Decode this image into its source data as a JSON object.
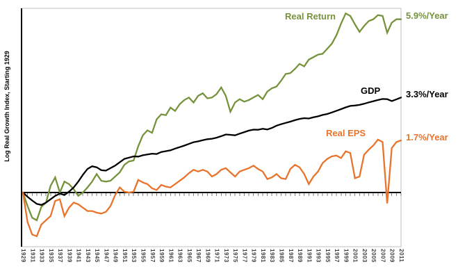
{
  "chart_data": {
    "type": "line",
    "title": "",
    "ylabel": "Log Real Growth Index, Starting 1929",
    "xlabel": "",
    "x_start": 1929,
    "x_end": 2011,
    "x_label_every_years": 2,
    "x_tick_labels": [
      "1929",
      "1931",
      "1933",
      "1935",
      "1937",
      "1939",
      "1941",
      "1943",
      "1945",
      "1947",
      "1949",
      "1951",
      "1953",
      "1955",
      "1957",
      "1959",
      "1961",
      "1963",
      "1965",
      "1967",
      "1969",
      "1971",
      "1973",
      "1975",
      "1977",
      "1979",
      "1981",
      "1983",
      "1985",
      "1987",
      "1989",
      "1991",
      "1993",
      "1995",
      "1997",
      "1999",
      "2001",
      "2003",
      "2005",
      "2007",
      "2009",
      "2011"
    ],
    "y_axis_numeric_labels_visible": false,
    "y_range_log10": [
      -0.65,
      2.25
    ],
    "zero_baseline": true,
    "grid": false,
    "legend_position": "inline-labels",
    "series": [
      {
        "name": "Real Return",
        "annotation": "5.9%/Year",
        "color": "#76923C",
        "values_log10_growth_index": [
          0.0,
          -0.16,
          -0.3,
          -0.33,
          -0.17,
          -0.12,
          0.08,
          0.18,
          0.0,
          0.13,
          0.1,
          0.04,
          -0.04,
          0.0,
          0.06,
          0.13,
          0.22,
          0.14,
          0.13,
          0.14,
          0.19,
          0.24,
          0.33,
          0.37,
          0.38,
          0.55,
          0.68,
          0.74,
          0.71,
          0.87,
          0.93,
          0.92,
          1.01,
          0.97,
          1.05,
          1.1,
          1.13,
          1.07,
          1.15,
          1.18,
          1.12,
          1.13,
          1.17,
          1.25,
          1.15,
          0.96,
          1.07,
          1.11,
          1.08,
          1.1,
          1.13,
          1.16,
          1.11,
          1.2,
          1.24,
          1.26,
          1.33,
          1.41,
          1.42,
          1.47,
          1.53,
          1.5,
          1.58,
          1.61,
          1.64,
          1.65,
          1.71,
          1.77,
          1.87,
          2.01,
          2.13,
          2.1,
          2.0,
          1.91,
          1.98,
          2.04,
          2.06,
          2.11,
          2.1,
          1.9,
          2.02,
          2.06,
          2.06
        ]
      },
      {
        "name": "GDP",
        "annotation": "3.3%/Year",
        "color": "#000000",
        "values_log10_growth_index": [
          0.0,
          -0.05,
          -0.095,
          -0.135,
          -0.148,
          -0.12,
          -0.08,
          -0.04,
          -0.012,
          -0.03,
          0.01,
          0.06,
          0.13,
          0.21,
          0.28,
          0.312,
          0.3,
          0.265,
          0.26,
          0.29,
          0.32,
          0.36,
          0.4,
          0.415,
          0.43,
          0.427,
          0.443,
          0.452,
          0.462,
          0.458,
          0.482,
          0.492,
          0.502,
          0.522,
          0.54,
          0.558,
          0.578,
          0.598,
          0.608,
          0.622,
          0.634,
          0.64,
          0.652,
          0.67,
          0.69,
          0.686,
          0.68,
          0.7,
          0.718,
          0.736,
          0.748,
          0.746,
          0.758,
          0.75,
          0.768,
          0.795,
          0.812,
          0.828,
          0.843,
          0.86,
          0.875,
          0.884,
          0.88,
          0.894,
          0.906,
          0.922,
          0.934,
          0.952,
          0.972,
          0.992,
          1.012,
          1.03,
          1.035,
          1.042,
          1.055,
          1.072,
          1.086,
          1.1,
          1.112,
          1.11,
          1.088,
          1.108,
          1.13
        ]
      },
      {
        "name": "Real EPS",
        "annotation": "1.7%/Year",
        "color": "#E8732C",
        "values_log10_growth_index": [
          0.0,
          -0.35,
          -0.5,
          -0.52,
          -0.38,
          -0.33,
          -0.28,
          -0.1,
          -0.08,
          -0.28,
          -0.18,
          -0.12,
          -0.14,
          -0.18,
          -0.22,
          -0.22,
          -0.24,
          -0.25,
          -0.23,
          -0.16,
          -0.03,
          0.06,
          0.01,
          0.0,
          0.01,
          0.15,
          0.12,
          0.1,
          0.05,
          0.03,
          0.09,
          0.07,
          0.06,
          0.1,
          0.14,
          0.18,
          0.23,
          0.27,
          0.25,
          0.27,
          0.25,
          0.19,
          0.22,
          0.27,
          0.29,
          0.24,
          0.19,
          0.25,
          0.27,
          0.29,
          0.32,
          0.28,
          0.25,
          0.16,
          0.18,
          0.22,
          0.17,
          0.16,
          0.28,
          0.33,
          0.3,
          0.22,
          0.1,
          0.19,
          0.25,
          0.35,
          0.4,
          0.43,
          0.44,
          0.41,
          0.49,
          0.47,
          0.17,
          0.19,
          0.45,
          0.51,
          0.56,
          0.63,
          0.6,
          -0.13,
          0.53,
          0.6,
          0.62
        ]
      }
    ]
  },
  "colors": {
    "plot_border": "#BFBFBF",
    "axis": "#000000",
    "tick": "#7F7F7F",
    "x_tick_label": "#404040",
    "background": "#FFFFFF"
  }
}
